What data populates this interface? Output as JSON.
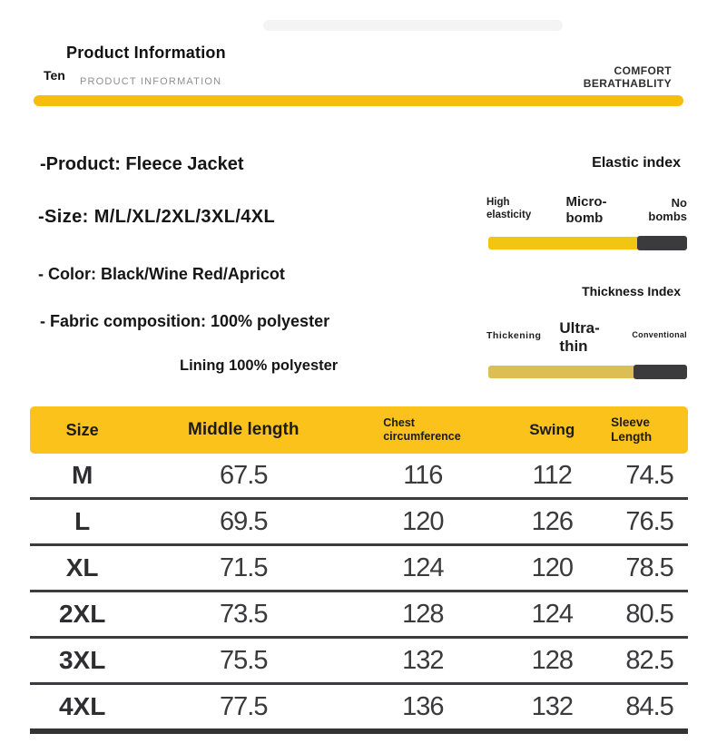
{
  "colors": {
    "accent": "#F5BE0B",
    "table_header_bg": "#FAC21B",
    "elastic_yellow": "#F2C512",
    "thickness_yellow": "#DDBE55",
    "dark_segment": "#3B3B3D"
  },
  "header": {
    "title": "Product Information",
    "subtitle_prefix": "Ten",
    "subtitle": "PRODUCT INFORMATION",
    "right_line1": "COMFORT",
    "right_line2": "BERATHABLITY"
  },
  "details": [
    "-Product: Fleece Jacket",
    "-Size: M/L/XL/2XL/3XL/4XL",
    "- Color: Black/Wine Red/Apricot",
    "- Fabric composition: 100% polyester"
  ],
  "lining": "Lining 100% polyester",
  "elastic_index": {
    "title": "Elastic index",
    "labels": [
      "High elasticity",
      "Micro-bomb",
      "No bombs"
    ],
    "bar": {
      "dark_pct": 25
    }
  },
  "thickness_index": {
    "title": "Thickness Index",
    "labels": [
      "Thickening",
      "Ultra-thin",
      "Conventional"
    ],
    "bar": {
      "dark_pct": 27
    }
  },
  "size_table": {
    "columns": [
      "Size",
      "Middle length",
      "Chest circumference",
      "Swing",
      "Sleeve Length"
    ],
    "rows": [
      [
        "M",
        "67.5",
        "116",
        "112",
        "74.5"
      ],
      [
        "L",
        "69.5",
        "120",
        "126",
        "76.5"
      ],
      [
        "XL",
        "71.5",
        "124",
        "120",
        "78.5"
      ],
      [
        "2XL",
        "73.5",
        "128",
        "124",
        "80.5"
      ],
      [
        "3XL",
        "75.5",
        "132",
        "128",
        "82.5"
      ],
      [
        "4XL",
        "77.5",
        "136",
        "132",
        "84.5"
      ]
    ]
  }
}
